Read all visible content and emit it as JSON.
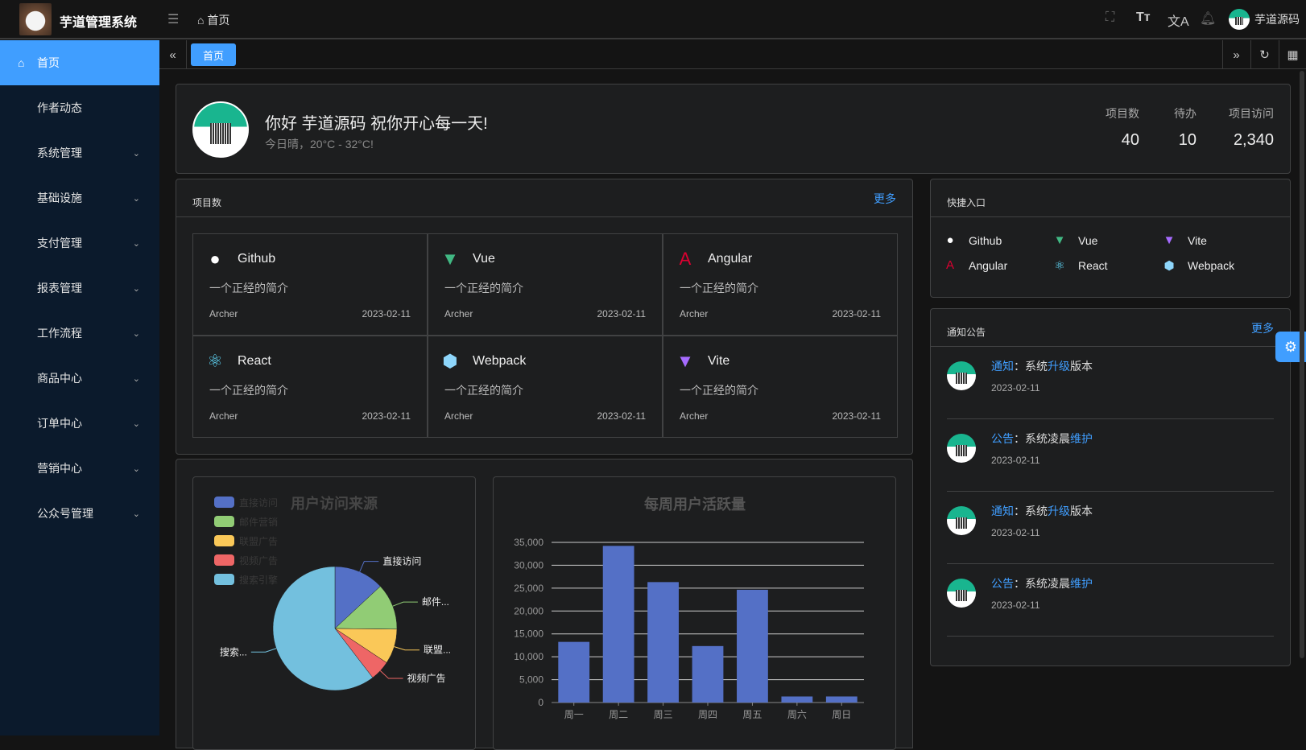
{
  "header": {
    "app_title": "芋道管理系统",
    "breadcrumb": "首页",
    "user_name": "芋道源码",
    "icons": [
      "fullscreen-icon",
      "font-size-icon",
      "translate-icon",
      "bell-icon"
    ]
  },
  "sidebar": {
    "items": [
      {
        "label": "首页",
        "active": true
      },
      {
        "label": "作者动态"
      },
      {
        "label": "系统管理",
        "expandable": true
      },
      {
        "label": "基础设施",
        "expandable": true
      },
      {
        "label": "支付管理",
        "expandable": true
      },
      {
        "label": "报表管理",
        "expandable": true
      },
      {
        "label": "工作流程",
        "expandable": true
      },
      {
        "label": "商品中心",
        "expandable": true
      },
      {
        "label": "订单中心",
        "expandable": true
      },
      {
        "label": "营销中心",
        "expandable": true
      },
      {
        "label": "公众号管理",
        "expandable": true
      }
    ]
  },
  "tabs": [
    {
      "label": "首页",
      "active": true
    }
  ],
  "welcome": {
    "greeting": "你好 芋道源码 祝你开心每一天!",
    "weather": "今日晴，20°C - 32°C!",
    "stats": [
      {
        "label": "项目数",
        "value": "40"
      },
      {
        "label": "待办",
        "value": "10"
      },
      {
        "label": "项目访问",
        "value": "2,340"
      }
    ]
  },
  "projects": {
    "title": "项目数",
    "more": "更多",
    "items": [
      {
        "name": "Github",
        "icon": "github-icon",
        "desc": "一个正经的简介",
        "author": "Archer",
        "date": "2023-02-11"
      },
      {
        "name": "Vue",
        "icon": "vue-icon",
        "desc": "一个正经的简介",
        "author": "Archer",
        "date": "2023-02-11"
      },
      {
        "name": "Angular",
        "icon": "angular-icon",
        "desc": "一个正经的简介",
        "author": "Archer",
        "date": "2023-02-11"
      },
      {
        "name": "React",
        "icon": "react-icon",
        "desc": "一个正经的简介",
        "author": "Archer",
        "date": "2023-02-11"
      },
      {
        "name": "Webpack",
        "icon": "webpack-icon",
        "desc": "一个正经的简介",
        "author": "Archer",
        "date": "2023-02-11"
      },
      {
        "name": "Vite",
        "icon": "vite-icon",
        "desc": "一个正经的简介",
        "author": "Archer",
        "date": "2023-02-11"
      }
    ]
  },
  "quick": {
    "title": "快捷入口",
    "items": [
      {
        "name": "Github"
      },
      {
        "name": "Vue"
      },
      {
        "name": "Vite"
      },
      {
        "name": "Angular"
      },
      {
        "name": "React"
      },
      {
        "name": "Webpack"
      }
    ]
  },
  "notices": {
    "title": "通知公告",
    "more": "更多",
    "items": [
      {
        "type": "通知",
        "sep": "：",
        "a": "系统",
        "b": "升级",
        "c": "版本",
        "date": "2023-02-11"
      },
      {
        "type": "公告",
        "sep": "：",
        "a": "系统凌晨",
        "b": "维护",
        "c": "",
        "date": "2023-02-11"
      },
      {
        "type": "通知",
        "sep": "：",
        "a": "系统",
        "b": "升级",
        "c": "版本",
        "date": "2023-02-11"
      },
      {
        "type": "公告",
        "sep": "：",
        "a": "系统凌晨",
        "b": "维护",
        "c": "",
        "date": "2023-02-11"
      }
    ]
  },
  "colors": {
    "accent": "#409eff"
  },
  "chart_data": [
    {
      "type": "pie",
      "title": "用户访问来源",
      "legend": "top-left",
      "categories": [
        "直接访问",
        "邮件营销",
        "联盟广告",
        "视频广告",
        "搜索引擎"
      ],
      "labels": [
        "直接访问",
        "邮件...",
        "联盟...",
        "视频广告",
        "搜索..."
      ],
      "values": [
        335,
        310,
        234,
        135,
        1548
      ],
      "colors": [
        "#5470c6",
        "#91cc75",
        "#fac858",
        "#ee6666",
        "#73c0de"
      ]
    },
    {
      "type": "bar",
      "title": "每周用户活跃量",
      "categories": [
        "周一",
        "周二",
        "周三",
        "周四",
        "周五",
        "周六",
        "周日"
      ],
      "values": [
        13253,
        34235,
        26321,
        12340,
        24643,
        1322,
        1324
      ],
      "ylim": [
        0,
        35000
      ],
      "yticks": [
        "0",
        "5,000",
        "10,000",
        "15,000",
        "20,000",
        "25,000",
        "30,000",
        "35,000"
      ],
      "grid": true,
      "color": "#5470c6"
    }
  ]
}
